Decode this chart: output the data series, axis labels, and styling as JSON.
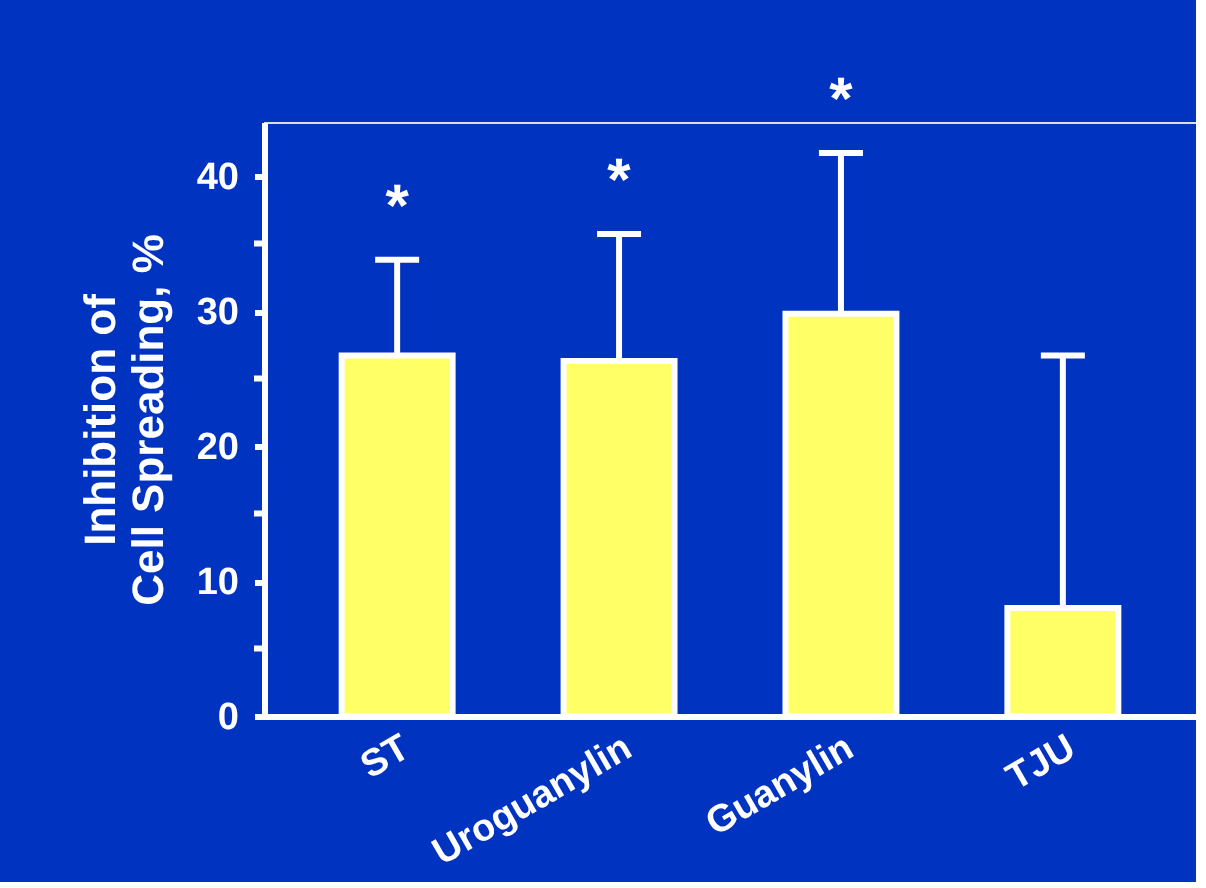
{
  "chart_data": {
    "type": "bar",
    "ylabel": "Inhibition of\nCell Spreading, %",
    "categories": [
      "ST",
      "Uroguanylin",
      "Guanylin",
      "TJU"
    ],
    "values": [
      26.7,
      26.3,
      29.8,
      8.0
    ],
    "color": "#ffff66",
    "errors": [
      [
        26.7,
        33.8
      ],
      [
        26.3,
        35.7
      ],
      [
        29.8,
        41.7
      ],
      [
        8.0,
        26.7
      ]
    ],
    "ylim": [
      0,
      44
    ],
    "yticks": [
      0,
      {
        "value": 5,
        "label": null
      },
      10,
      {
        "value": 15,
        "label": null
      },
      20,
      {
        "value": 25,
        "label": null
      },
      30,
      {
        "value": 35,
        "label": null
      },
      40
    ],
    "annotations": [
      "*",
      "*",
      "*"
    ],
    "grid": false
  }
}
